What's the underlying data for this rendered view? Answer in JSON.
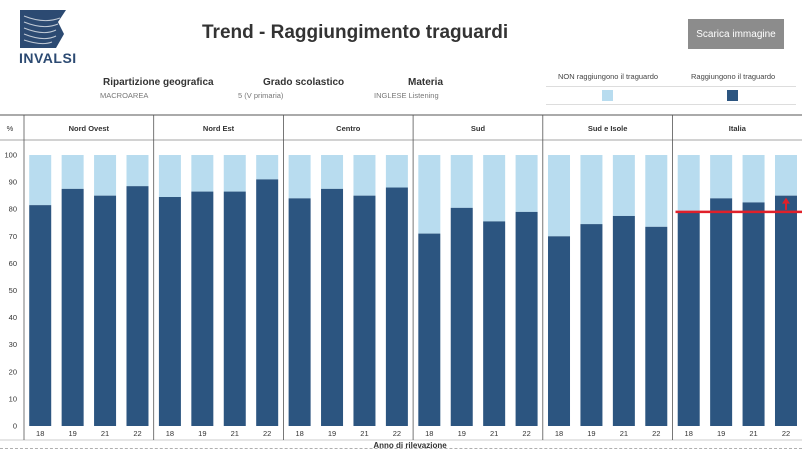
{
  "header": {
    "title": "Trend - Raggiungimento traguardi",
    "logo_text": "INVALSI",
    "download_label": "Scarica immagine"
  },
  "filters": [
    {
      "label": "Ripartizione geografica",
      "value": "MACROAREA"
    },
    {
      "label": "Grado scolastico",
      "value": "5 (V primaria)"
    },
    {
      "label": "Materia",
      "value": "INGLESE Listening"
    }
  ],
  "legend": [
    {
      "label": "NON raggiungono il traguardo",
      "color": "#b8dcef"
    },
    {
      "label": "Raggiungono il traguardo",
      "color": "#2c5580"
    }
  ],
  "chart_data": {
    "type": "bar",
    "stacked": true,
    "xlabel": "Anno di rilevazione",
    "ylabel": "%",
    "ylim": [
      0,
      100
    ],
    "yticks": [
      0,
      10,
      20,
      30,
      40,
      50,
      60,
      70,
      80,
      90,
      100
    ],
    "panels": [
      {
        "name": "Nord Ovest",
        "categories": [
          "18",
          "19",
          "21",
          "22"
        ],
        "values": [
          81.5,
          87.5,
          85,
          88.5
        ]
      },
      {
        "name": "Nord Est",
        "categories": [
          "18",
          "19",
          "21",
          "22"
        ],
        "values": [
          84.5,
          86.5,
          86.5,
          91
        ]
      },
      {
        "name": "Centro",
        "categories": [
          "18",
          "19",
          "21",
          "22"
        ],
        "values": [
          84,
          87.5,
          85,
          88
        ]
      },
      {
        "name": "Sud",
        "categories": [
          "18",
          "19",
          "21",
          "22"
        ],
        "values": [
          71,
          80.5,
          75.5,
          79
        ]
      },
      {
        "name": "Sud e Isole",
        "categories": [
          "18",
          "19",
          "21",
          "22"
        ],
        "values": [
          70,
          74.5,
          77.5,
          73.5
        ]
      },
      {
        "name": "Italia",
        "categories": [
          "18",
          "19",
          "21",
          "22"
        ],
        "values": [
          79,
          84,
          82.5,
          85
        ]
      }
    ],
    "series": [
      {
        "name": "Raggiungono il traguardo",
        "color": "#2c5580"
      },
      {
        "name": "NON raggiungono il traguardo",
        "color": "#b8dcef"
      }
    ],
    "annotation": {
      "type": "reference-line",
      "panel": "Italia",
      "value": 79,
      "color": "#e0202a"
    }
  }
}
